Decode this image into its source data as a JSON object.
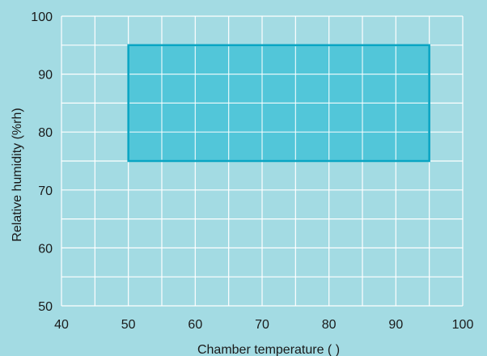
{
  "chart_data": {
    "type": "area",
    "xlabel": "Chamber temperature (   )",
    "ylabel": "Relative humidity (%rh)",
    "xlim": [
      40,
      100
    ],
    "ylim": [
      50,
      100
    ],
    "x_ticks": [
      40,
      50,
      60,
      70,
      80,
      90,
      100
    ],
    "y_ticks": [
      50,
      60,
      70,
      80,
      90,
      100
    ],
    "x_grid": [
      40,
      45,
      50,
      55,
      60,
      65,
      70,
      75,
      80,
      85,
      90,
      95,
      100
    ],
    "y_grid": [
      50,
      55,
      60,
      65,
      70,
      75,
      80,
      85,
      90,
      95,
      100
    ],
    "grid": true,
    "region": {
      "x": [
        50,
        95
      ],
      "y": [
        75,
        95
      ]
    },
    "colors": {
      "background": "#a3dbe3",
      "grid": "#ffffff",
      "region_fill": "#52c6d9",
      "region_stroke": "#0aa5c3",
      "text": "#1a1a1a"
    }
  }
}
